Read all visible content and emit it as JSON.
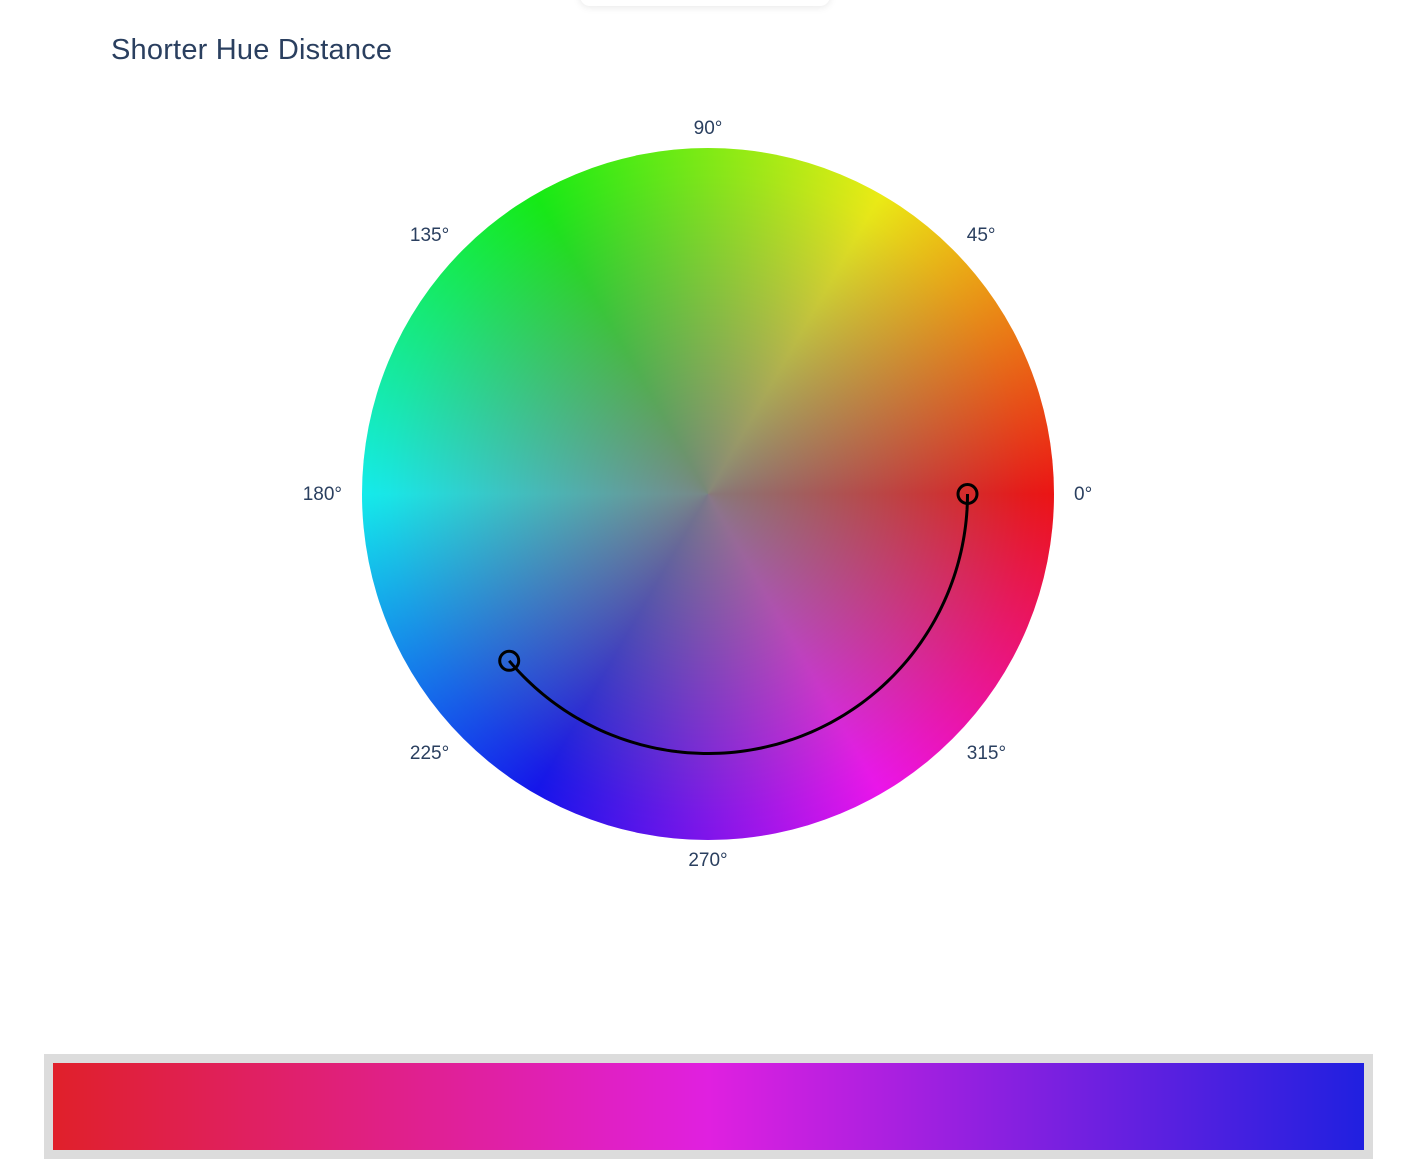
{
  "title": "Shorter Hue Distance",
  "chart_data": {
    "type": "polar",
    "title": "Shorter Hue Distance",
    "angular_axis": {
      "ticks": [
        0,
        45,
        90,
        135,
        180,
        225,
        270,
        315
      ],
      "tick_labels": [
        "0°",
        "45°",
        "90°",
        "135°",
        "180°",
        "225°",
        "270°",
        "315°"
      ],
      "direction": "counterclockwise",
      "rotation": 0
    },
    "hue_path": {
      "start_hue": 0,
      "end_hue": 220,
      "direction": "clockwise",
      "radius_fraction": 0.75,
      "marker": "open-circle",
      "line_color": "#000000"
    },
    "gradient": {
      "colors": [
        "#e0202a",
        "#e020e0",
        "#2020e0"
      ]
    }
  }
}
